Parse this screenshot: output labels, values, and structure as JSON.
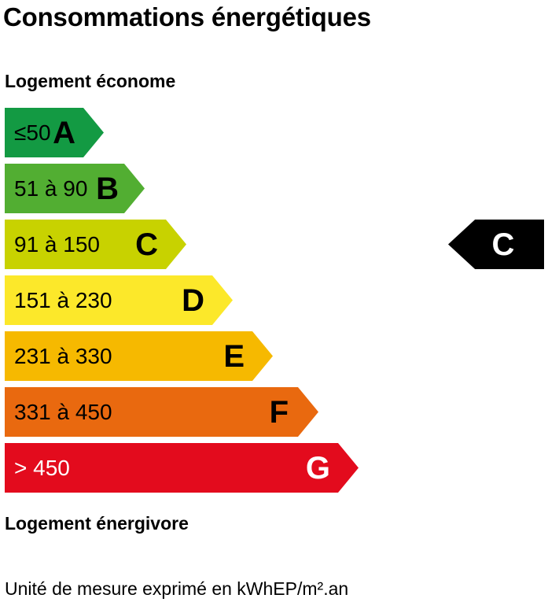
{
  "title": "Consommations énergétiques",
  "caption_top": "Logement économe",
  "caption_bottom": "Logement énergivore",
  "unit_note": "Unité de mesure exprimé en kWhEP/m².an",
  "classes": [
    {
      "letter": "A",
      "range": "≤50",
      "color": "#139a43",
      "text_color": "#000000"
    },
    {
      "letter": "B",
      "range": "51 à 90",
      "color": "#52ae32",
      "text_color": "#000000"
    },
    {
      "letter": "C",
      "range": "91 à 150",
      "color": "#c8d200",
      "text_color": "#000000"
    },
    {
      "letter": "D",
      "range": "151 à 230",
      "color": "#fce82a",
      "text_color": "#000000"
    },
    {
      "letter": "E",
      "range": "231 à 330",
      "color": "#f6b900",
      "text_color": "#000000"
    },
    {
      "letter": "F",
      "range": "331 à 450",
      "color": "#e9690f",
      "text_color": "#000000"
    },
    {
      "letter": "G",
      "range": "> 450",
      "color": "#e30b1d",
      "text_color": "#ffffff"
    }
  ],
  "current_class": {
    "letter": "C",
    "color": "#000000"
  }
}
